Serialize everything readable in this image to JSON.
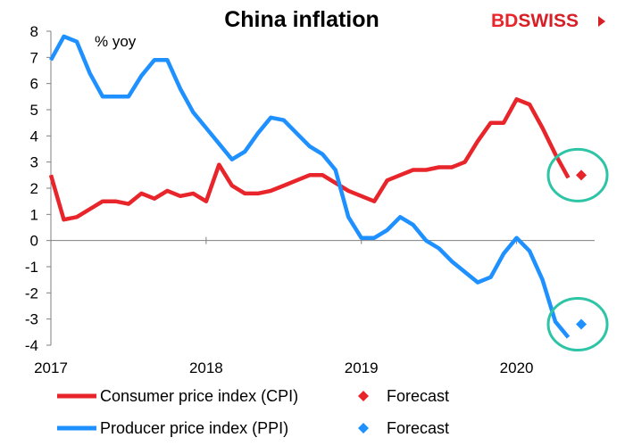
{
  "chart_data": {
    "type": "line",
    "title": "China inflation",
    "unit_label": "% yoy",
    "ylim": [
      -4,
      8
    ],
    "y_ticks": [
      8,
      7,
      6,
      5,
      4,
      3,
      2,
      1,
      0,
      -1,
      -2,
      -3,
      -4
    ],
    "x_range": [
      "2017-01",
      "2020-08"
    ],
    "x_ticks": [
      {
        "label": "2017",
        "date": "2017-01"
      },
      {
        "label": "2018",
        "date": "2018-01"
      },
      {
        "label": "2019",
        "date": "2019-01"
      },
      {
        "label": "2020",
        "date": "2020-01"
      }
    ],
    "grid": false,
    "legend_position": "bottom",
    "series": [
      {
        "name": "Consumer price index (CPI)",
        "color": "#e8252a",
        "x": [
          "2017-01",
          "2017-02",
          "2017-03",
          "2017-04",
          "2017-05",
          "2017-06",
          "2017-07",
          "2017-08",
          "2017-09",
          "2017-10",
          "2017-11",
          "2017-12",
          "2018-01",
          "2018-02",
          "2018-03",
          "2018-04",
          "2018-05",
          "2018-06",
          "2018-07",
          "2018-08",
          "2018-09",
          "2018-10",
          "2018-11",
          "2018-12",
          "2019-01",
          "2019-02",
          "2019-03",
          "2019-04",
          "2019-05",
          "2019-06",
          "2019-07",
          "2019-08",
          "2019-09",
          "2019-10",
          "2019-11",
          "2019-12",
          "2020-01",
          "2020-02",
          "2020-03",
          "2020-04",
          "2020-05"
        ],
        "values": [
          2.5,
          0.8,
          0.9,
          1.2,
          1.5,
          1.5,
          1.4,
          1.8,
          1.6,
          1.9,
          1.7,
          1.8,
          1.5,
          2.9,
          2.1,
          1.8,
          1.8,
          1.9,
          2.1,
          2.3,
          2.5,
          2.5,
          2.2,
          1.9,
          1.7,
          1.5,
          2.3,
          2.5,
          2.7,
          2.7,
          2.8,
          2.8,
          3.0,
          3.8,
          4.5,
          4.5,
          5.4,
          5.2,
          4.3,
          3.3,
          2.4
        ]
      },
      {
        "name": "Producer price index (PPI)",
        "color": "#1e90ff",
        "x": [
          "2017-01",
          "2017-02",
          "2017-03",
          "2017-04",
          "2017-05",
          "2017-06",
          "2017-07",
          "2017-08",
          "2017-09",
          "2017-10",
          "2017-11",
          "2017-12",
          "2018-01",
          "2018-02",
          "2018-03",
          "2018-04",
          "2018-05",
          "2018-06",
          "2018-07",
          "2018-08",
          "2018-09",
          "2018-10",
          "2018-11",
          "2018-12",
          "2019-01",
          "2019-02",
          "2019-03",
          "2019-04",
          "2019-05",
          "2019-06",
          "2019-07",
          "2019-08",
          "2019-09",
          "2019-10",
          "2019-11",
          "2019-12",
          "2020-01",
          "2020-02",
          "2020-03",
          "2020-04",
          "2020-05"
        ],
        "values": [
          6.9,
          7.8,
          7.6,
          6.4,
          5.5,
          5.5,
          5.5,
          6.3,
          6.9,
          6.9,
          5.8,
          4.9,
          4.3,
          3.7,
          3.1,
          3.4,
          4.1,
          4.7,
          4.6,
          4.1,
          3.6,
          3.3,
          2.7,
          0.9,
          0.1,
          0.1,
          0.4,
          0.9,
          0.6,
          0.0,
          -0.3,
          -0.8,
          -1.2,
          -1.6,
          -1.4,
          -0.5,
          0.1,
          -0.4,
          -1.5,
          -3.1,
          -3.7
        ]
      }
    ],
    "forecasts": [
      {
        "name": "Forecast",
        "color": "#e8252a",
        "x": "2020-06",
        "value": 2.5
      },
      {
        "name": "Forecast",
        "color": "#1e90ff",
        "x": "2020-06",
        "value": -3.2
      }
    ],
    "highlight_color": "#2ec4a6"
  },
  "brand": {
    "logo_text_bd": "BD",
    "logo_text_swiss": "SWISS",
    "logo_color_bd": "#e8252a",
    "logo_color_swiss": "#d81f26"
  }
}
